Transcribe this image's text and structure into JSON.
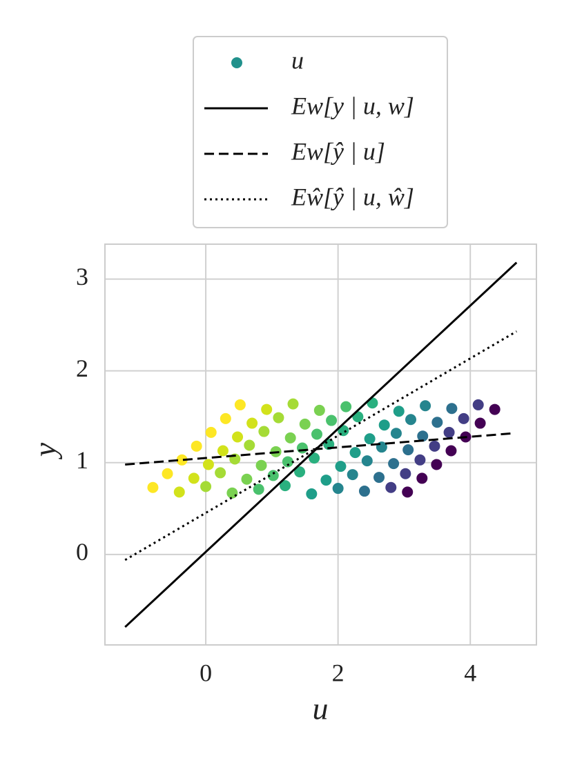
{
  "chart_data": {
    "type": "scatter",
    "x_label": "u",
    "y_label": "y",
    "xlim": [
      -1.525,
      5.0
    ],
    "ylim": [
      -0.985,
      3.38
    ],
    "xticks": [
      0,
      2,
      4
    ],
    "yticks": [
      0,
      1,
      2,
      3
    ],
    "grid": true,
    "legend": "upper center outside",
    "series": [
      {
        "name": "u",
        "type": "scatter",
        "x": [
          -0.8,
          -0.4,
          0,
          0.4,
          0.8,
          1.2,
          1.6,
          2.0,
          2.4,
          2.8,
          3.05,
          -0.58,
          -0.18,
          0.22,
          0.62,
          1.02,
          1.42,
          1.82,
          2.22,
          2.62,
          3.02,
          3.27,
          -0.36,
          0.04,
          0.44,
          0.84,
          1.24,
          1.64,
          2.04,
          2.44,
          2.84,
          3.24,
          3.49,
          -0.14,
          0.26,
          0.66,
          1.06,
          1.46,
          1.86,
          2.26,
          2.66,
          3.06,
          3.46,
          3.71,
          0.08,
          0.48,
          0.88,
          1.28,
          1.68,
          2.08,
          2.48,
          2.88,
          3.28,
          3.68,
          3.93,
          0.3,
          0.7,
          1.1,
          1.5,
          1.9,
          2.3,
          2.7,
          3.1,
          3.5,
          3.9,
          4.15,
          0.52,
          0.92,
          1.32,
          1.72,
          2.12,
          2.52,
          2.92,
          3.32,
          3.72,
          4.12,
          4.37
        ],
        "values": [
          0.73,
          0.68,
          0.74,
          0.67,
          0.71,
          0.75,
          0.66,
          0.72,
          0.69,
          0.73,
          0.68,
          0.88,
          0.83,
          0.89,
          0.82,
          0.86,
          0.9,
          0.81,
          0.87,
          0.84,
          0.88,
          0.83,
          1.03,
          0.98,
          1.04,
          0.97,
          1.01,
          1.05,
          0.96,
          1.02,
          0.99,
          1.03,
          0.98,
          1.18,
          1.13,
          1.19,
          1.12,
          1.16,
          1.2,
          1.11,
          1.17,
          1.14,
          1.18,
          1.13,
          1.33,
          1.28,
          1.34,
          1.27,
          1.31,
          1.35,
          1.26,
          1.32,
          1.29,
          1.33,
          1.28,
          1.48,
          1.43,
          1.49,
          1.42,
          1.46,
          1.5,
          1.41,
          1.47,
          1.44,
          1.48,
          1.43,
          1.63,
          1.58,
          1.64,
          1.57,
          1.61,
          1.65,
          1.56,
          1.62,
          1.59,
          1.63,
          1.58
        ],
        "color": "#21918c",
        "palette": [
          "#fde725",
          "#d2e21b",
          "#a5db36",
          "#7ad151",
          "#4ac16d",
          "#2ab07f",
          "#1f9e89",
          "#25858e",
          "#2d708e",
          "#433e85",
          "#440154"
        ]
      },
      {
        "name": "Ew[y | u, w]",
        "type": "line",
        "dash": "solid",
        "color": "#000000",
        "x": [
          -1.22,
          4.7
        ],
        "values": [
          -0.79,
          3.18
        ]
      },
      {
        "name": "Ew[ŷ | u]",
        "type": "line",
        "dash": "dashed",
        "color": "#000000",
        "x": [
          -1.22,
          4.65
        ],
        "values": [
          0.98,
          1.32
        ]
      },
      {
        "name": "Eŵ[ŷ | u, ŵ]",
        "type": "line",
        "dash": "dotted",
        "color": "#000000",
        "x": [
          -1.22,
          4.7
        ],
        "values": [
          -0.06,
          2.43
        ]
      }
    ]
  }
}
